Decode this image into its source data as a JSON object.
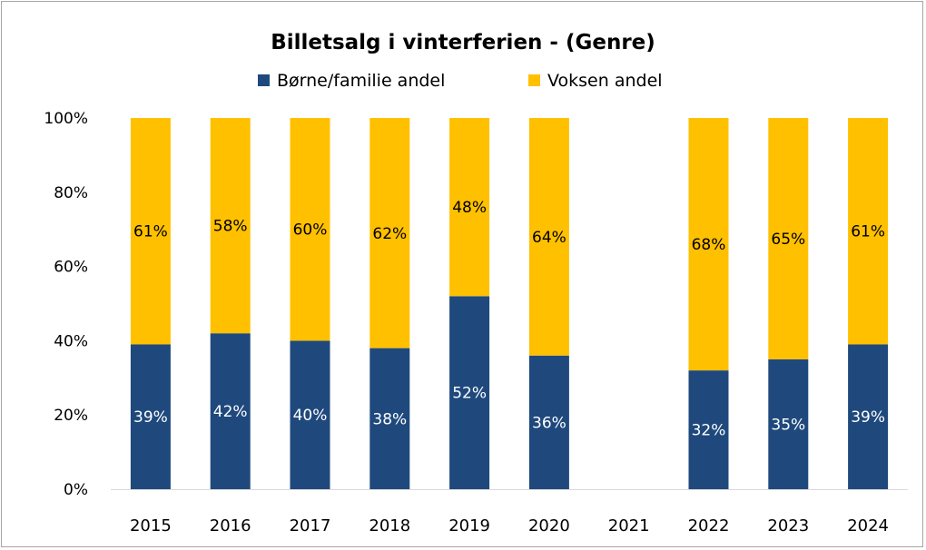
{
  "chart_data": {
    "type": "bar",
    "stacked": true,
    "title": "Billetsalg i vinterferien - (Genre)",
    "categories": [
      "2015",
      "2016",
      "2017",
      "2018",
      "2019",
      "2020",
      "2021",
      "2022",
      "2023",
      "2024"
    ],
    "series": [
      {
        "name": "Børne/familie andel",
        "color": "#1f497d",
        "label_color": "#ffffff",
        "values": [
          39,
          42,
          40,
          38,
          52,
          36,
          null,
          32,
          35,
          39
        ],
        "labels": [
          "39%",
          "42%",
          "40%",
          "38%",
          "52%",
          "36%",
          "",
          "32%",
          "35%",
          "39%"
        ]
      },
      {
        "name": "Voksen andel",
        "color": "#ffc000",
        "label_color": "#000000",
        "values": [
          61,
          58,
          60,
          62,
          48,
          64,
          null,
          68,
          65,
          61
        ],
        "labels": [
          "61%",
          "58%",
          "60%",
          "62%",
          "48%",
          "64%",
          "",
          "68%",
          "65%",
          "61%"
        ]
      }
    ],
    "ylim": [
      0,
      100
    ],
    "yticks": [
      "0%",
      "20%",
      "40%",
      "60%",
      "80%",
      "100%"
    ],
    "ytick_values": [
      0,
      20,
      40,
      60,
      80,
      100
    ],
    "legend_position": "top",
    "grid": false
  }
}
